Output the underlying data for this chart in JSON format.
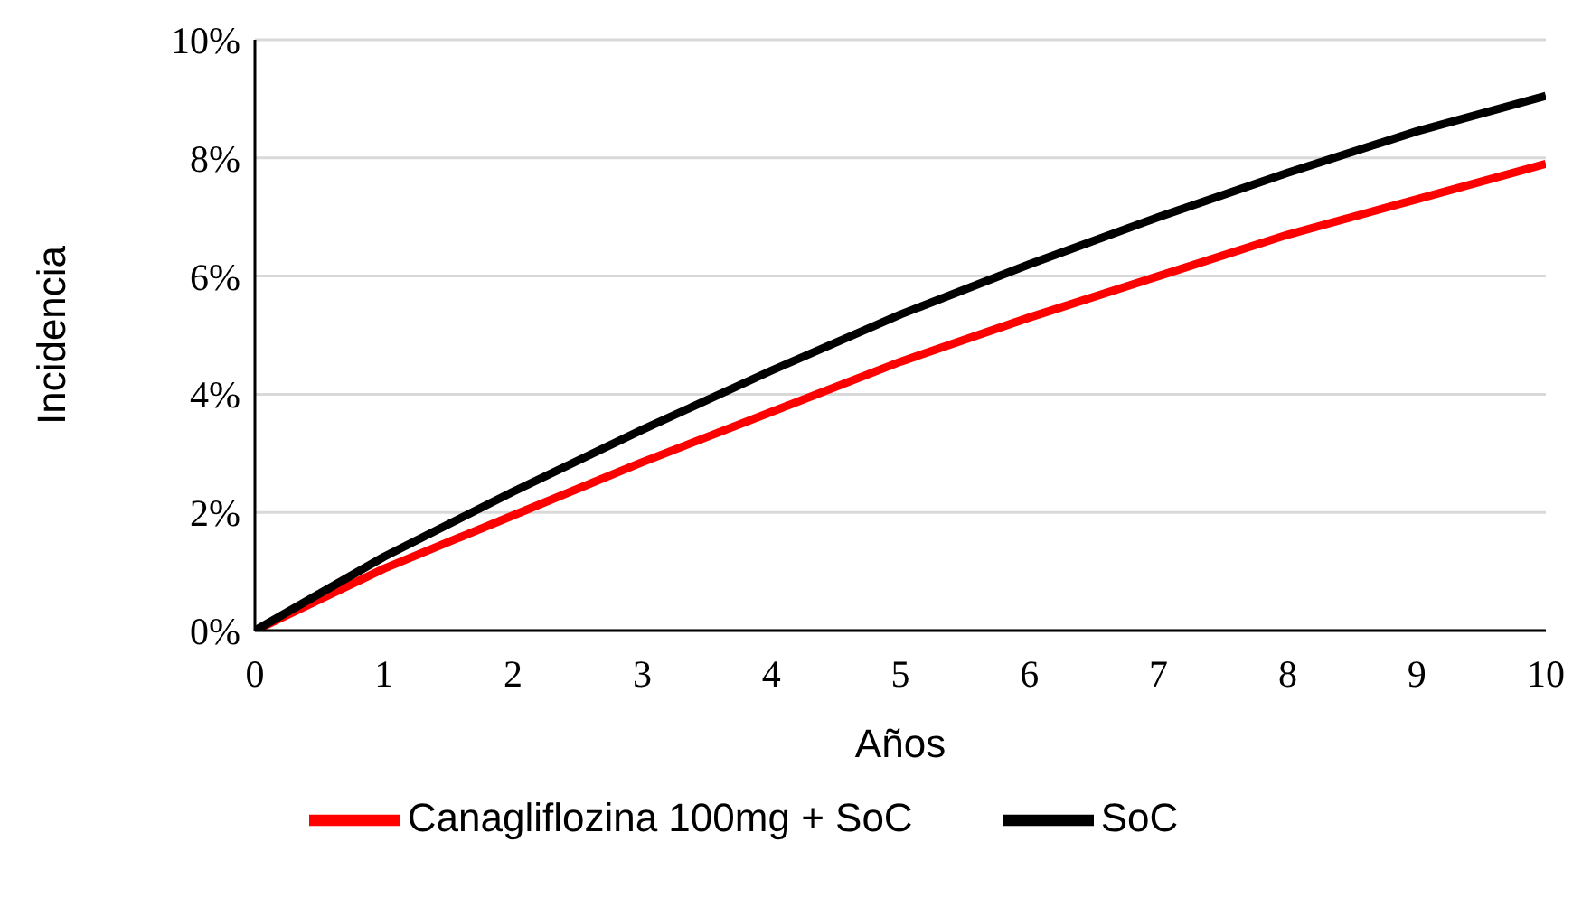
{
  "chart_data": {
    "type": "line",
    "xlabel": "Años",
    "ylabel": "Incidencia",
    "x": [
      0,
      1,
      2,
      3,
      4,
      5,
      6,
      7,
      8,
      9,
      10
    ],
    "series": [
      {
        "name": "Canagliflozina 100mg + SoC",
        "color": "#ff0000",
        "values": [
          0,
          1.05,
          1.95,
          2.85,
          3.7,
          4.55,
          5.3,
          6.0,
          6.7,
          7.3,
          7.9
        ]
      },
      {
        "name": "SoC",
        "color": "#000000",
        "values": [
          0,
          1.25,
          2.35,
          3.4,
          4.4,
          5.35,
          6.2,
          7.0,
          7.75,
          8.45,
          9.05
        ]
      }
    ],
    "xlim": [
      0,
      10
    ],
    "xticks": [
      0,
      1,
      2,
      3,
      4,
      5,
      6,
      7,
      8,
      9,
      10
    ],
    "ylim": [
      0,
      10
    ],
    "yticks": [
      {
        "value": 0,
        "label": "0%"
      },
      {
        "value": 2,
        "label": "2%"
      },
      {
        "value": 4,
        "label": "4%"
      },
      {
        "value": 6,
        "label": "6%"
      },
      {
        "value": 8,
        "label": "8%"
      },
      {
        "value": 10,
        "label": "10%"
      }
    ],
    "grid": "y",
    "legend": "bottom",
    "marker": "none",
    "line_style": "solid"
  }
}
